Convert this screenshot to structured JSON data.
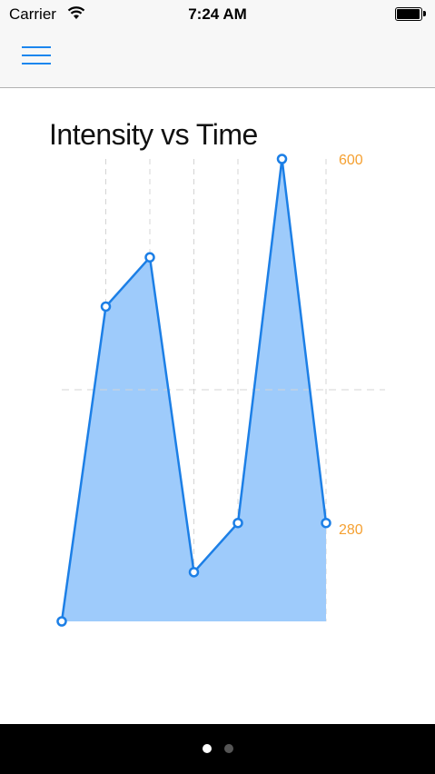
{
  "status_bar": {
    "carrier": "Carrier",
    "time": "7:24 AM"
  },
  "nav": {
    "menu_icon": "hamburger-menu-icon"
  },
  "chart_data": {
    "type": "area",
    "title": "Intensity vs Time",
    "values": [
      200,
      520,
      570,
      250,
      300,
      670,
      300
    ],
    "y_tick_labels": [
      "600",
      "280"
    ],
    "ylim": [
      200,
      670
    ],
    "grid": {
      "vertical": true,
      "horizontal": true
    },
    "colors": {
      "line": "#1c7fe6",
      "fill": "#9ecbfb",
      "marker_fill": "#ffffff",
      "tick_label": "#f5a031",
      "grid": "#d4d4d4"
    }
  },
  "pager": {
    "pages": 2,
    "current": 1
  }
}
